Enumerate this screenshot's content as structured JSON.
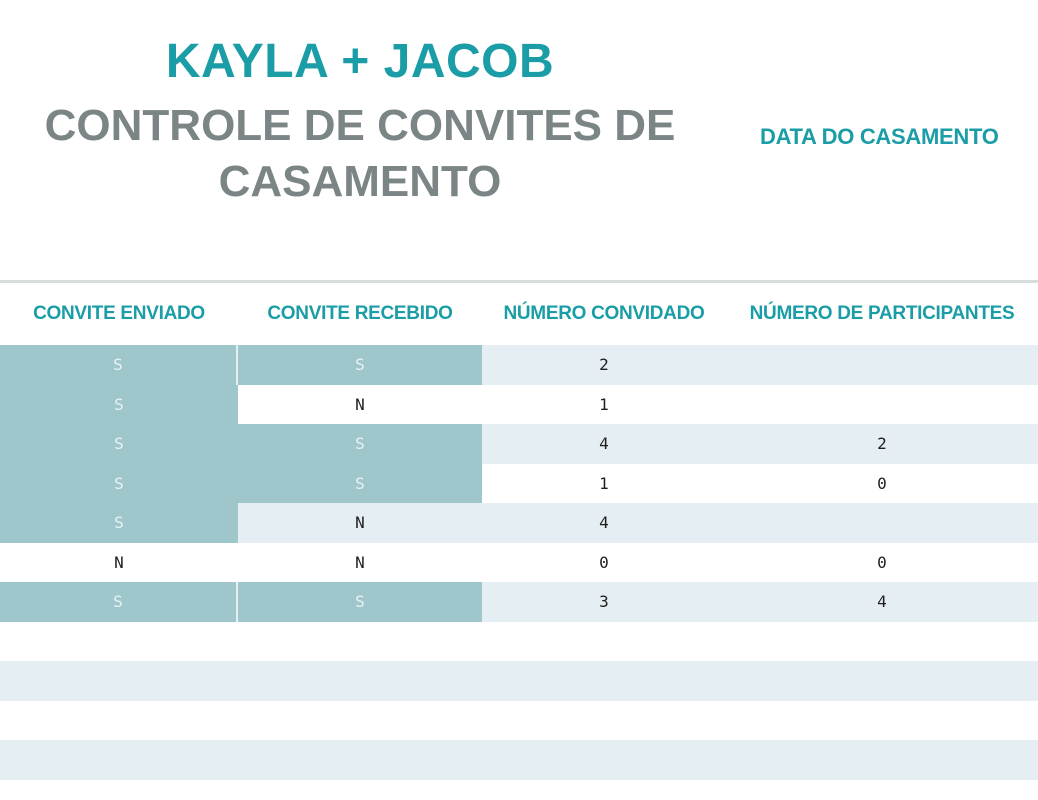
{
  "header": {
    "names": "KAYLA + JACOB",
    "subtitle": "CONTROLE DE CONVITES DE CASAMENTO",
    "date_label": "DATA DO CASAMENTO"
  },
  "table": {
    "columns": [
      "CONVITE ENVIADO",
      "CONVITE RECEBIDO",
      "NÚMERO CONVIDADO",
      "NÚMERO DE PARTICIPANTES"
    ],
    "rows": [
      {
        "enviado": "S",
        "recebido": "S",
        "convidado": "2",
        "participantes": ""
      },
      {
        "enviado": "S",
        "recebido": "N",
        "convidado": "1",
        "participantes": ""
      },
      {
        "enviado": "S",
        "recebido": "S",
        "convidado": "4",
        "participantes": "2"
      },
      {
        "enviado": "S",
        "recebido": "S",
        "convidado": "1",
        "participantes": "0"
      },
      {
        "enviado": "S",
        "recebido": "N",
        "convidado": "4",
        "participantes": ""
      },
      {
        "enviado": "N",
        "recebido": "N",
        "convidado": "0",
        "participantes": "0"
      },
      {
        "enviado": "S",
        "recebido": "S",
        "convidado": "3",
        "participantes": "4"
      },
      {
        "enviado": "",
        "recebido": "",
        "convidado": "",
        "participantes": ""
      },
      {
        "enviado": "",
        "recebido": "",
        "convidado": "",
        "participantes": ""
      },
      {
        "enviado": "",
        "recebido": "",
        "convidado": "",
        "participantes": ""
      },
      {
        "enviado": "",
        "recebido": "",
        "convidado": "",
        "participantes": ""
      }
    ]
  },
  "colors": {
    "accent": "#1a9da6",
    "subtitle_gray": "#7b8585",
    "band": "#e5eef2",
    "highlight": "#9fc6cb"
  }
}
